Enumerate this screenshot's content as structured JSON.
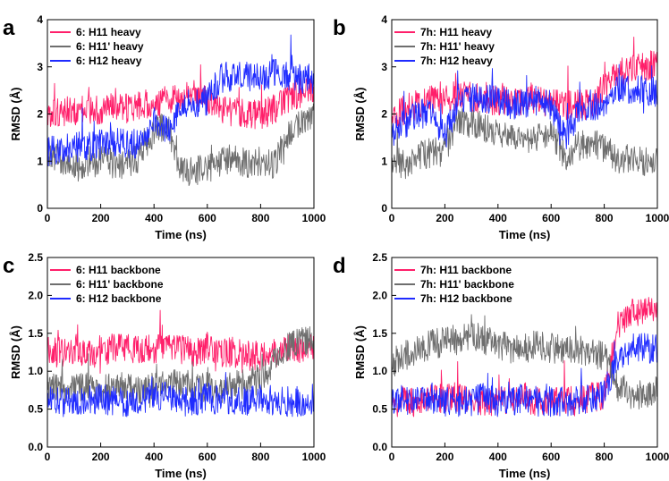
{
  "chart_data": [
    {
      "panel": "a",
      "type": "line",
      "xlabel": "Time (ns)",
      "ylabel": "RMSD (Å)",
      "xlim": [
        0,
        1000
      ],
      "ylim": [
        0,
        4
      ],
      "xticks": [
        0,
        200,
        400,
        600,
        800,
        1000
      ],
      "yticks": [
        0,
        1,
        2,
        3,
        4
      ],
      "legend_position": "top-left",
      "series": [
        {
          "name": "6: H11 heavy",
          "color": "#ff1f6a",
          "x": [
            0,
            50,
            100,
            150,
            200,
            250,
            300,
            350,
            400,
            450,
            500,
            550,
            600,
            650,
            700,
            750,
            800,
            850,
            900,
            950,
            1000
          ],
          "values": [
            2.0,
            2.05,
            2.05,
            2.1,
            2.05,
            2.15,
            2.1,
            2.2,
            2.2,
            2.3,
            2.35,
            2.4,
            2.3,
            2.1,
            2.05,
            2.0,
            2.0,
            2.1,
            2.3,
            2.45,
            2.5
          ]
        },
        {
          "name": "6: H11' heavy",
          "color": "#6e6e6e",
          "x": [
            0,
            50,
            100,
            150,
            200,
            250,
            300,
            350,
            400,
            450,
            500,
            550,
            600,
            650,
            700,
            750,
            800,
            850,
            900,
            950,
            1000
          ],
          "values": [
            1.2,
            1.0,
            0.9,
            0.9,
            1.0,
            0.95,
            0.95,
            1.1,
            1.6,
            1.8,
            0.8,
            0.8,
            0.85,
            1.0,
            1.05,
            0.95,
            1.0,
            0.95,
            1.5,
            1.8,
            2.0
          ]
        },
        {
          "name": "6: H12 heavy",
          "color": "#1f2bff",
          "x": [
            0,
            50,
            100,
            150,
            200,
            250,
            300,
            350,
            400,
            450,
            500,
            550,
            600,
            650,
            700,
            750,
            800,
            850,
            900,
            950,
            1000
          ],
          "values": [
            1.2,
            1.25,
            1.3,
            1.3,
            1.35,
            1.4,
            1.35,
            1.4,
            1.9,
            1.6,
            2.2,
            2.2,
            2.3,
            2.75,
            2.8,
            2.8,
            2.8,
            2.85,
            2.8,
            2.75,
            2.75
          ]
        }
      ]
    },
    {
      "panel": "b",
      "type": "line",
      "xlabel": "Time (ns)",
      "ylabel": "RMSD (Å)",
      "xlim": [
        0,
        1000
      ],
      "ylim": [
        0,
        4
      ],
      "xticks": [
        0,
        200,
        400,
        600,
        800,
        1000
      ],
      "yticks": [
        0,
        1,
        2,
        3,
        4
      ],
      "legend_position": "top-left",
      "series": [
        {
          "name": "7h: H11 heavy",
          "color": "#ff1f6a",
          "x": [
            0,
            50,
            100,
            150,
            200,
            250,
            300,
            350,
            400,
            450,
            500,
            550,
            600,
            650,
            700,
            750,
            800,
            850,
            900,
            950,
            1000
          ],
          "values": [
            1.9,
            2.1,
            2.2,
            2.3,
            2.3,
            2.4,
            2.35,
            2.3,
            2.3,
            2.25,
            2.3,
            2.3,
            2.2,
            2.2,
            2.2,
            2.2,
            2.6,
            2.85,
            2.95,
            3.0,
            3.05
          ]
        },
        {
          "name": "7h: H11' heavy",
          "color": "#6e6e6e",
          "x": [
            0,
            50,
            100,
            150,
            200,
            250,
            300,
            350,
            400,
            450,
            500,
            550,
            600,
            650,
            700,
            750,
            800,
            850,
            900,
            950,
            1000
          ],
          "values": [
            1.1,
            0.9,
            1.1,
            1.2,
            1.2,
            1.9,
            1.8,
            1.7,
            1.6,
            1.5,
            1.4,
            1.5,
            1.6,
            1.1,
            1.3,
            1.4,
            1.3,
            1.0,
            1.05,
            1.0,
            1.0
          ]
        },
        {
          "name": "7h: H12 heavy",
          "color": "#1f2bff",
          "x": [
            0,
            50,
            100,
            150,
            200,
            250,
            300,
            350,
            400,
            450,
            500,
            550,
            600,
            650,
            700,
            750,
            800,
            850,
            900,
            950,
            1000
          ],
          "values": [
            1.6,
            1.8,
            2.0,
            2.0,
            1.5,
            2.3,
            2.35,
            2.3,
            2.3,
            2.2,
            2.2,
            2.3,
            2.2,
            1.5,
            2.0,
            2.2,
            2.1,
            2.5,
            2.55,
            2.5,
            2.45
          ]
        }
      ]
    },
    {
      "panel": "c",
      "type": "line",
      "xlabel": "Time (ns)",
      "ylabel": "RMSD (Å)",
      "xlim": [
        0,
        1000
      ],
      "ylim": [
        0,
        2.5
      ],
      "xticks": [
        0,
        200,
        400,
        600,
        800,
        1000
      ],
      "yticks": [
        0.0,
        0.5,
        1.0,
        1.5,
        2.0,
        2.5
      ],
      "legend_position": "top-left",
      "series": [
        {
          "name": "6: H11 backbone",
          "color": "#ff1f6a",
          "x": [
            0,
            50,
            100,
            150,
            200,
            250,
            300,
            350,
            400,
            450,
            500,
            550,
            600,
            650,
            700,
            750,
            800,
            850,
            900,
            950,
            1000
          ],
          "values": [
            1.25,
            1.25,
            1.3,
            1.25,
            1.25,
            1.3,
            1.3,
            1.25,
            1.3,
            1.3,
            1.3,
            1.25,
            1.3,
            1.25,
            1.25,
            1.2,
            1.2,
            1.25,
            1.3,
            1.3,
            1.3
          ]
        },
        {
          "name": "6: H11' backbone",
          "color": "#6e6e6e",
          "x": [
            0,
            50,
            100,
            150,
            200,
            250,
            300,
            350,
            400,
            450,
            500,
            550,
            600,
            650,
            700,
            750,
            800,
            850,
            900,
            950,
            1000
          ],
          "values": [
            0.8,
            0.75,
            0.8,
            0.8,
            0.75,
            0.8,
            0.8,
            0.75,
            0.8,
            0.85,
            0.8,
            0.75,
            0.8,
            0.75,
            0.8,
            0.85,
            0.9,
            1.1,
            1.3,
            1.4,
            1.4
          ]
        },
        {
          "name": "6: H12 backbone",
          "color": "#1f2bff",
          "x": [
            0,
            50,
            100,
            150,
            200,
            250,
            300,
            350,
            400,
            450,
            500,
            550,
            600,
            650,
            700,
            750,
            800,
            850,
            900,
            950,
            1000
          ],
          "values": [
            0.6,
            0.6,
            0.6,
            0.6,
            0.65,
            0.6,
            0.6,
            0.6,
            0.7,
            0.65,
            0.6,
            0.6,
            0.65,
            0.6,
            0.6,
            0.6,
            0.65,
            0.6,
            0.6,
            0.6,
            0.6
          ]
        }
      ]
    },
    {
      "panel": "d",
      "type": "line",
      "xlabel": "Time (ns)",
      "ylabel": "RMSD (Å)",
      "xlim": [
        0,
        1000
      ],
      "ylim": [
        0,
        2.5
      ],
      "xticks": [
        0,
        200,
        400,
        600,
        800,
        1000
      ],
      "yticks": [
        0.0,
        0.5,
        1.0,
        1.5,
        2.0,
        2.5
      ],
      "legend_position": "top-left",
      "series": [
        {
          "name": "7h: H11 backbone",
          "color": "#ff1f6a",
          "x": [
            0,
            50,
            100,
            150,
            200,
            250,
            300,
            350,
            400,
            450,
            500,
            550,
            600,
            650,
            700,
            750,
            800,
            850,
            900,
            950,
            1000
          ],
          "values": [
            0.6,
            0.6,
            0.6,
            0.65,
            0.65,
            0.65,
            0.65,
            0.6,
            0.6,
            0.6,
            0.65,
            0.6,
            0.6,
            0.6,
            0.6,
            0.65,
            0.7,
            1.6,
            1.75,
            1.8,
            1.8
          ]
        },
        {
          "name": "7h: H11' backbone",
          "color": "#6e6e6e",
          "x": [
            0,
            50,
            100,
            150,
            200,
            250,
            300,
            350,
            400,
            450,
            500,
            550,
            600,
            650,
            700,
            750,
            800,
            850,
            900,
            950,
            1000
          ],
          "values": [
            1.1,
            1.2,
            1.3,
            1.35,
            1.4,
            1.4,
            1.45,
            1.4,
            1.35,
            1.3,
            1.3,
            1.35,
            1.3,
            1.3,
            1.3,
            1.25,
            1.2,
            0.8,
            0.7,
            0.7,
            0.75
          ]
        },
        {
          "name": "7h: H12 backbone",
          "color": "#1f2bff",
          "x": [
            0,
            50,
            100,
            150,
            200,
            250,
            300,
            350,
            400,
            450,
            500,
            550,
            600,
            650,
            700,
            750,
            800,
            850,
            900,
            950,
            1000
          ],
          "values": [
            0.6,
            0.6,
            0.6,
            0.65,
            0.6,
            0.6,
            0.6,
            0.65,
            0.6,
            0.6,
            0.65,
            0.6,
            0.6,
            0.6,
            0.6,
            0.65,
            0.7,
            1.2,
            1.3,
            1.3,
            1.3
          ]
        }
      ]
    }
  ]
}
